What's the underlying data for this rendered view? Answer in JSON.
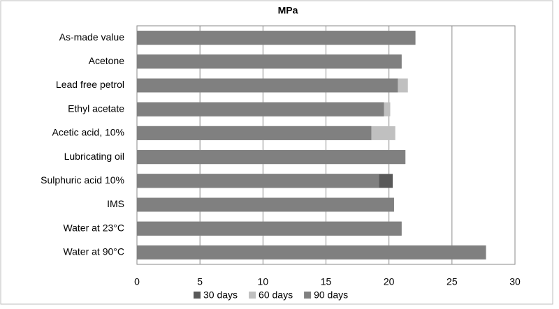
{
  "chart_data": {
    "type": "overlapping-hbar",
    "title": "MPa",
    "categories": [
      "As-made value",
      "Acetone",
      "Lead free petrol",
      "Ethyl acetate",
      "Acetic acid, 10%",
      "Lubricating oil",
      "Sulphuric acid 10%",
      "IMS",
      "Water at 23°C",
      "Water at 90°C"
    ],
    "series": [
      {
        "name": "30 days",
        "color": "#595959",
        "values": [
          22.1,
          21.0,
          20.7,
          19.6,
          18.6,
          21.3,
          20.3,
          20.4,
          21.0,
          27.7
        ]
      },
      {
        "name": "60 days",
        "color": "#c0c0c0",
        "values": [
          22.1,
          21.0,
          21.5,
          20.1,
          20.5,
          21.3,
          19.2,
          20.4,
          21.0,
          27.7
        ]
      },
      {
        "name": "90 days",
        "color": "#808080",
        "values": [
          22.1,
          21.0,
          20.7,
          19.6,
          18.6,
          21.3,
          19.2,
          20.4,
          21.0,
          27.7
        ]
      }
    ],
    "xlim": [
      0,
      30
    ],
    "xticks": [
      0,
      5,
      10,
      15,
      20,
      25,
      30
    ],
    "grid": true,
    "legend": "bottom"
  }
}
